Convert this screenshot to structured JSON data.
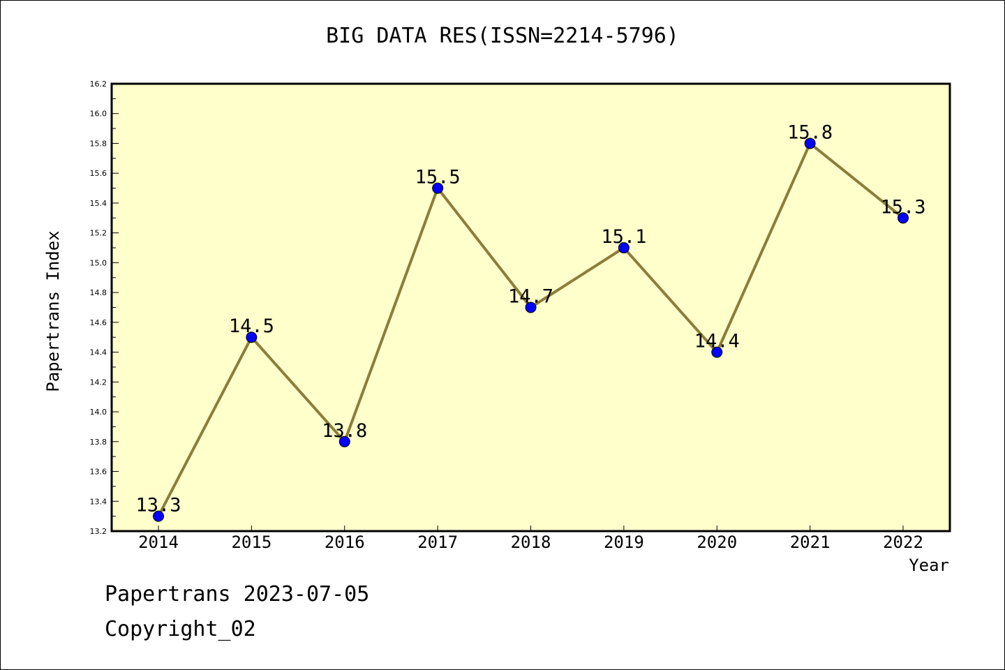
{
  "chart_data": {
    "type": "line",
    "title": "BIG DATA RES(ISSN=2214-5796)",
    "xlabel": "Year",
    "ylabel": "Papertrans Index",
    "categories": [
      "2014",
      "2015",
      "2016",
      "2017",
      "2018",
      "2019",
      "2020",
      "2021",
      "2022"
    ],
    "series": [
      {
        "values": [
          13.3,
          14.5,
          13.8,
          15.5,
          14.7,
          15.1,
          14.4,
          15.8,
          15.3
        ],
        "data_labels": [
          "13.3",
          "14.5",
          "13.8",
          "15.5",
          "14.7",
          "15.1",
          "14.4",
          "15.8",
          "15.3"
        ]
      }
    ],
    "ylim": [
      13.2,
      16.2
    ],
    "yticks": [
      "13.2",
      "13.4",
      "13.6",
      "13.8",
      "14.0",
      "14.2",
      "14.4",
      "14.6",
      "14.8",
      "15.0",
      "15.2",
      "15.4",
      "15.6",
      "15.8",
      "16.0",
      "16.2"
    ],
    "grid": false,
    "legend": "none",
    "colors": {
      "plot_background": "#ffffcc",
      "line": "#8b7d3a",
      "marker": "#0000ff"
    }
  },
  "footer": {
    "date_line": "Papertrans 2023-07-05",
    "copyright": "Copyright_02"
  }
}
